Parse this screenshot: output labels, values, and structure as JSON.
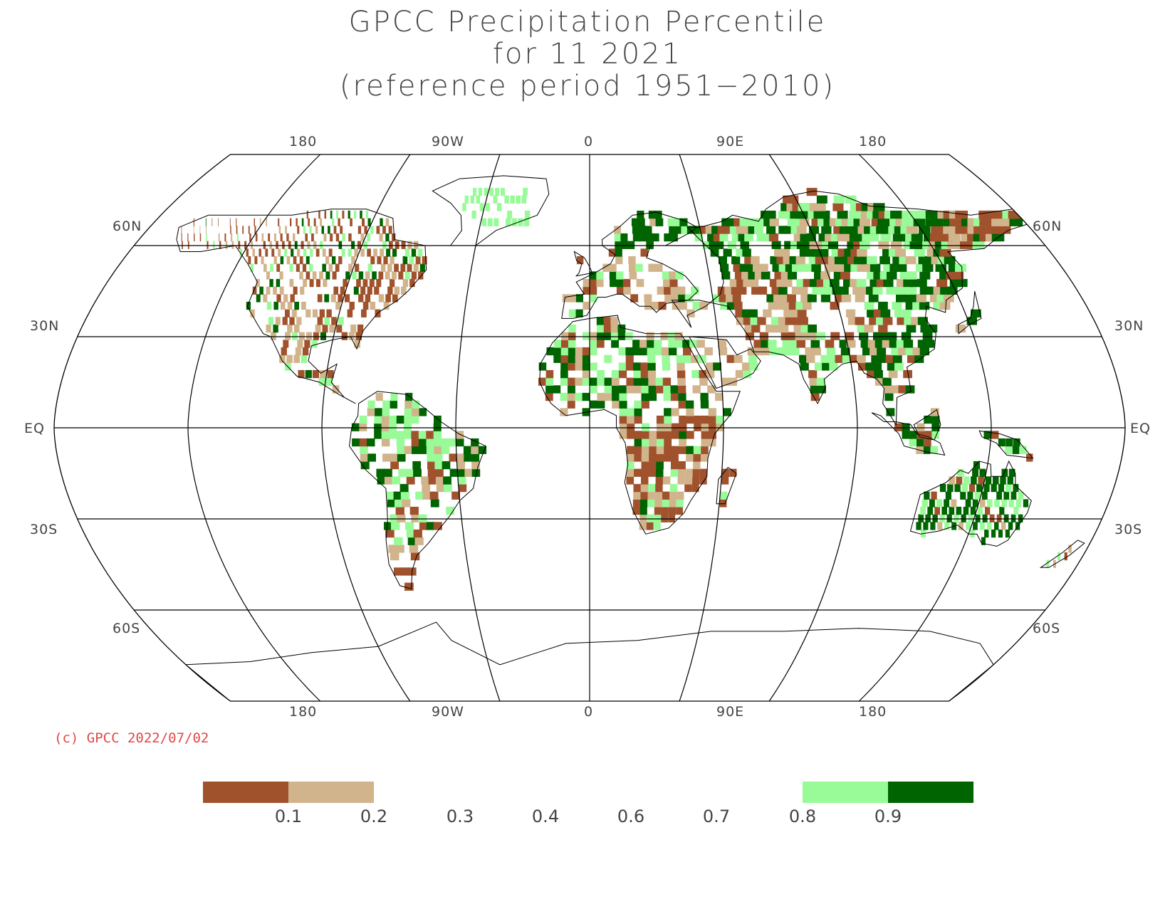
{
  "title": {
    "line1": "GPCC Precipitation Percentile",
    "line2": "for 11 2021",
    "line3": "(reference period 1951−2010)"
  },
  "longitude_labels": [
    "180",
    "90W",
    "0",
    "90E",
    "180"
  ],
  "latitude_labels": [
    "60N",
    "30N",
    "EQ",
    "30S",
    "60S"
  ],
  "copyright": "(c) GPCC 2022/07/02",
  "legend": {
    "labels": [
      "0.1",
      "0.2",
      "0.3",
      "0.4",
      "0.6",
      "0.7",
      "0.8",
      "0.9"
    ],
    "colors": {
      "below_0_1": "#a0522d",
      "0_1_to_0_2": "#d2b48c",
      "0_8_to_0_9": "#98fb98",
      "above_0_9": "#006400"
    }
  },
  "map": {
    "projection": "Robinson-like pseudocylindrical, centered on 0",
    "gridlines": "30 degree latitude / 45 degree longitude",
    "colors": {
      "very_dry": "#a0522d",
      "dry": "#d2b48c",
      "wet": "#98fb98",
      "very_wet": "#006400",
      "coast": "#000000"
    }
  }
}
